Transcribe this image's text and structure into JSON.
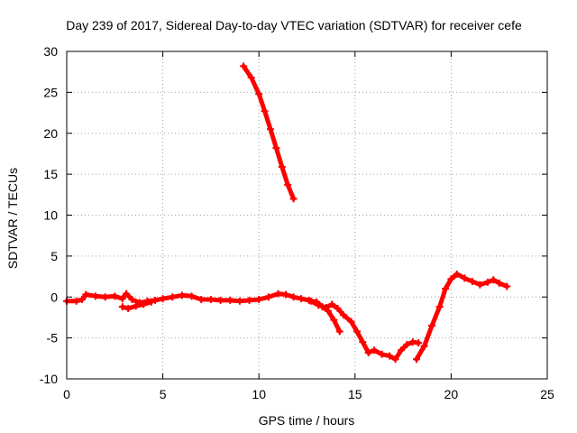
{
  "chart_data": {
    "type": "scatter",
    "title": "Day 239 of 2017, Sidereal Day-to-day VTEC variation (SDTVAR) for receiver cefe",
    "xlabel": "GPS time / hours",
    "ylabel": "SDTVAR / TECUs",
    "xlim": [
      0,
      25
    ],
    "ylim": [
      -10,
      30
    ],
    "xticks": [
      0,
      5,
      10,
      15,
      20,
      25
    ],
    "yticks": [
      -10,
      -5,
      0,
      5,
      10,
      15,
      20,
      25,
      30
    ],
    "xtick_labels": [
      "0",
      "5",
      "10",
      "15",
      "20",
      "25"
    ],
    "ytick_labels": [
      "-10",
      "-5",
      "0",
      "5",
      "10",
      "15",
      "20",
      "25",
      "30"
    ],
    "grid": true,
    "marker": "+",
    "series_color": "#ff0000",
    "series": [
      {
        "name": "main-trace-a",
        "x": [
          0,
          0.5,
          0.8,
          1.0,
          1.5,
          2.0,
          2.5,
          2.9,
          3.1,
          3.4,
          3.8,
          4.2,
          4.6,
          5.0,
          5.5,
          6.0,
          6.5,
          7.0,
          7.5,
          8.0,
          8.5,
          9.0,
          9.5,
          10.0,
          10.5,
          11.0,
          11.4,
          11.8,
          12.2,
          12.6,
          13.0,
          13.3,
          13.6,
          13.9,
          14.2
        ],
        "y": [
          -0.5,
          -0.5,
          -0.3,
          0.3,
          0.1,
          0.0,
          0.1,
          -0.2,
          0.4,
          -0.3,
          -0.7,
          -0.5,
          -0.4,
          -0.2,
          0.0,
          0.2,
          0.1,
          -0.3,
          -0.3,
          -0.4,
          -0.4,
          -0.5,
          -0.4,
          -0.3,
          0.0,
          0.4,
          0.3,
          0.0,
          -0.2,
          -0.4,
          -0.6,
          -1.2,
          -1.7,
          -2.8,
          -4.2
        ]
      },
      {
        "name": "main-trace-b",
        "x": [
          2.9,
          3.2,
          3.6,
          4.0,
          4.4
        ],
        "y": [
          -1.2,
          -1.4,
          -1.1,
          -0.9,
          -0.6
        ]
      },
      {
        "name": "main-trace-c",
        "x": [
          12.7,
          13.1,
          13.5,
          13.8,
          14.1,
          14.4,
          14.8,
          15.1,
          15.4,
          15.7,
          16.0,
          16.4,
          16.8,
          17.1,
          17.4,
          17.7,
          18.0,
          18.3
        ],
        "y": [
          -0.5,
          -1.0,
          -1.3,
          -0.9,
          -1.4,
          -2.2,
          -3.0,
          -4.2,
          -5.5,
          -6.8,
          -6.5,
          -7.0,
          -7.2,
          -7.6,
          -6.5,
          -5.8,
          -5.5,
          -5.6
        ]
      },
      {
        "name": "main-trace-d",
        "x": [
          18.2,
          18.6,
          19.0,
          19.4,
          19.7,
          20.0,
          20.3,
          20.7,
          21.1,
          21.5,
          21.9,
          22.2,
          22.5,
          22.9
        ],
        "y": [
          -7.6,
          -6.0,
          -3.5,
          -1.2,
          1.0,
          2.2,
          2.8,
          2.3,
          1.9,
          1.5,
          1.8,
          2.1,
          1.7,
          1.3
        ]
      },
      {
        "name": "upper-trace",
        "x": [
          9.2,
          9.6,
          10.0,
          10.3,
          10.6,
          10.9,
          11.2,
          11.5,
          11.8
        ],
        "y": [
          28.2,
          26.8,
          24.8,
          22.7,
          20.5,
          18.2,
          15.9,
          13.7,
          12.0
        ]
      }
    ]
  }
}
